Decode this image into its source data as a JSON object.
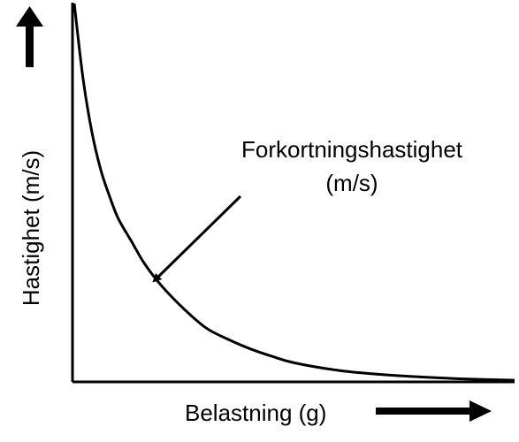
{
  "chart_data": {
    "type": "line",
    "title": "",
    "xlabel": "Belastning (g)",
    "ylabel": "Hastighet (m/s)",
    "xlim": [
      0,
      1
    ],
    "ylim": [
      0,
      1
    ],
    "grid": false,
    "legend": "none",
    "ticks": "none",
    "series": [
      {
        "values_x": [
          0.0,
          0.02,
          0.04,
          0.06,
          0.08,
          0.1,
          0.13,
          0.16,
          0.2,
          0.25,
          0.3,
          0.35,
          0.4,
          0.45,
          0.5,
          0.6,
          0.7,
          0.8,
          0.9,
          1.0
        ],
        "values_y": [
          1.0,
          0.8,
          0.66,
          0.56,
          0.49,
          0.43,
          0.37,
          0.31,
          0.25,
          0.19,
          0.14,
          0.11,
          0.085,
          0.065,
          0.048,
          0.028,
          0.017,
          0.01,
          0.005,
          0.002
        ]
      }
    ],
    "annotations": [
      {
        "text_line1": "Forkortningshastighet",
        "text_line2": "(m/s)"
      }
    ],
    "colors": {
      "line": "#000000",
      "axis": "#000000",
      "background": "#ffffff"
    }
  }
}
